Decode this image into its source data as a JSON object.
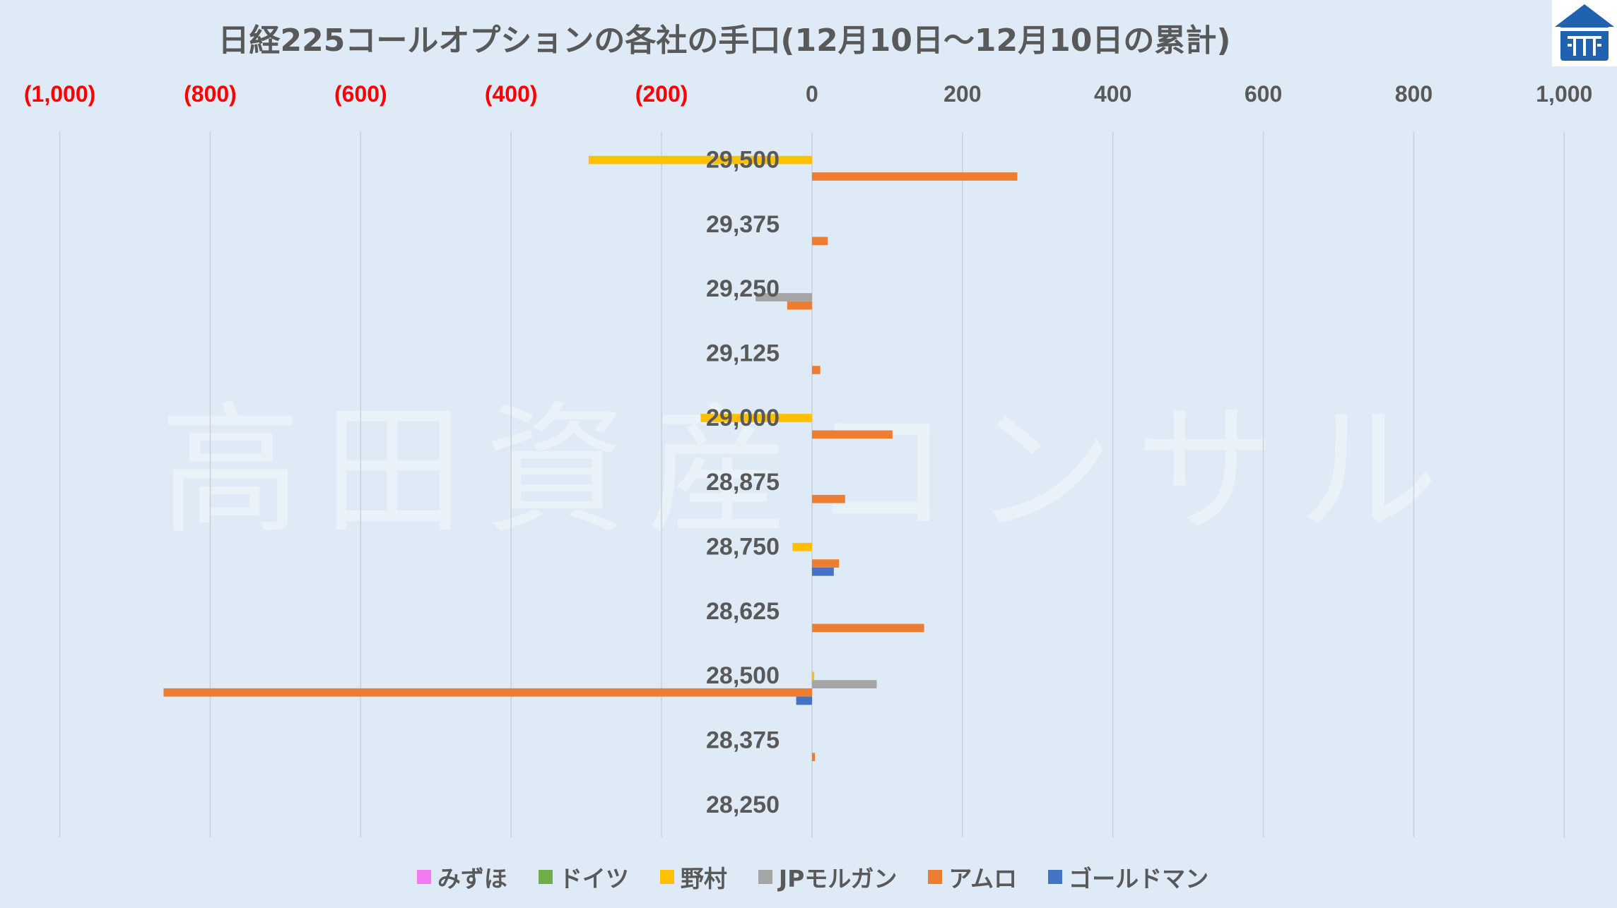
{
  "watermark": "高田資産コンサル",
  "logo_icon": "house-logo-icon",
  "colors": {
    "background": "#deeaf6",
    "text": "#595959",
    "negative_tick": "#ff0000",
    "grid": "#c9d0d9",
    "logo": "#1f63b0"
  },
  "chart_data": {
    "type": "bar",
    "orientation": "horizontal",
    "title": "日経225コールオプションの各社の手口(12月10日～12月10日の累計)",
    "categories": [
      "29,500",
      "29,375",
      "29,250",
      "29,125",
      "29,000",
      "28,875",
      "28,750",
      "28,625",
      "28,500",
      "28,375",
      "28,250"
    ],
    "series": [
      {
        "name": "みずほ",
        "color": "#f47af4",
        "values": [
          0,
          0,
          0,
          0,
          0,
          0,
          0,
          0,
          0,
          0,
          0
        ]
      },
      {
        "name": "ドイツ",
        "color": "#70ad47",
        "values": [
          0,
          0,
          0,
          0,
          0,
          0,
          0,
          0,
          0,
          0,
          0
        ]
      },
      {
        "name": "野村",
        "color": "#ffc000",
        "values": [
          -297,
          0,
          0,
          0,
          -148,
          0,
          -26,
          0,
          3,
          0,
          0
        ]
      },
      {
        "name": "JPモルガン",
        "color": "#a5a5a5",
        "values": [
          0,
          0,
          -75,
          0,
          0,
          0,
          0,
          0,
          86,
          0,
          0
        ]
      },
      {
        "name": "アムロ",
        "color": "#ed7d31",
        "values": [
          273,
          21,
          -33,
          11,
          107,
          44,
          36,
          149,
          -862,
          4,
          0
        ]
      },
      {
        "name": "ゴールドマン",
        "color": "#4472c4",
        "values": [
          0,
          0,
          0,
          0,
          0,
          0,
          29,
          0,
          -21,
          0,
          0
        ]
      }
    ],
    "xlim": [
      -1000,
      1000
    ],
    "x_ticks": [
      -1000,
      -800,
      -600,
      -400,
      -200,
      0,
      200,
      400,
      600,
      800,
      1000
    ],
    "x_tick_labels": [
      "(1,000)",
      "(800)",
      "(600)",
      "(400)",
      "(200)",
      "0",
      "200",
      "400",
      "600",
      "800",
      "1,000"
    ],
    "x_axis_position": "top",
    "grid": true,
    "legend": "bottom"
  }
}
